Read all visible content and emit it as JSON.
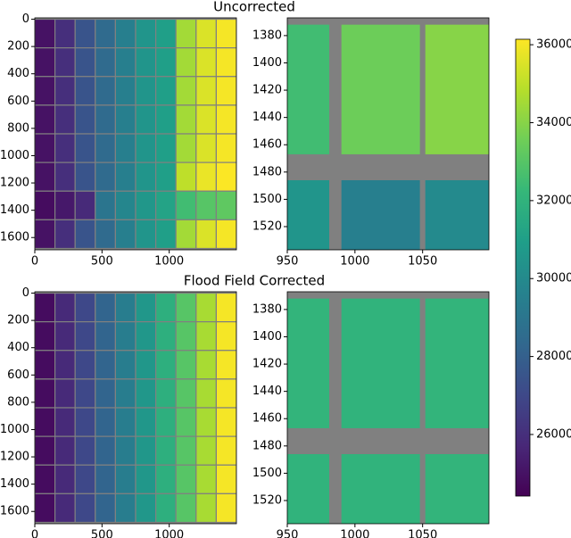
{
  "chart_data": [
    {
      "type": "heatmap",
      "title": "Uncorrected",
      "xedges": [
        0,
        150,
        300,
        450,
        600,
        750,
        900,
        1050,
        1200,
        1350,
        1500
      ],
      "yedges": [
        0,
        210,
        420,
        630,
        840,
        1050,
        1260,
        1470,
        1680
      ],
      "z": [
        [
          25000,
          26000,
          27500,
          28500,
          29500,
          30500,
          31000,
          34500,
          35500,
          36000
        ],
        [
          25000,
          26000,
          27500,
          28500,
          29500,
          30500,
          31000,
          34500,
          35500,
          36000
        ],
        [
          25000,
          26000,
          27500,
          28500,
          29500,
          30500,
          31000,
          34500,
          35500,
          36000
        ],
        [
          25000,
          26000,
          27500,
          28500,
          29500,
          30500,
          31000,
          34500,
          35500,
          36000
        ],
        [
          25000,
          26000,
          27500,
          28500,
          29500,
          30500,
          31000,
          34500,
          35500,
          36000
        ],
        [
          25000,
          26000,
          27500,
          28500,
          29500,
          30500,
          31000,
          35000,
          35800,
          36100
        ],
        [
          24800,
          25200,
          25800,
          29000,
          29800,
          30600,
          31200,
          32500,
          33000,
          33200
        ],
        [
          25000,
          26000,
          27500,
          28500,
          29500,
          30500,
          31000,
          34500,
          35500,
          36000
        ]
      ],
      "cell_edges": "#808080",
      "xlim": [
        0,
        1500
      ],
      "ylim": [
        1690,
        -10
      ],
      "xticks": [
        0,
        500,
        1000
      ],
      "yticks": [
        0,
        200,
        400,
        600,
        800,
        1000,
        1200,
        1400,
        1600
      ]
    },
    {
      "type": "heatmap",
      "xedges": [
        950,
        981,
        990,
        1048,
        1052,
        1100
      ],
      "yedges": [
        1367,
        1372,
        1467,
        1486,
        1537
      ],
      "z": [
        [
          null,
          null,
          null,
          null,
          null
        ],
        [
          32500,
          null,
          33500,
          null,
          34000
        ],
        [
          null,
          null,
          null,
          null,
          null
        ],
        [
          30500,
          null,
          29500,
          null,
          30000
        ]
      ],
      "xlim": [
        950,
        1099
      ],
      "ylim": [
        1537,
        1367
      ],
      "xticks": [
        950,
        1000,
        1050
      ],
      "yticks": [
        1380,
        1400,
        1420,
        1440,
        1460,
        1480,
        1500,
        1520
      ]
    },
    {
      "type": "heatmap",
      "title": "Flood Field Corrected",
      "xedges": [
        0,
        150,
        300,
        450,
        600,
        750,
        900,
        1050,
        1200,
        1350,
        1500
      ],
      "yedges": [
        0,
        210,
        420,
        630,
        840,
        1050,
        1260,
        1470,
        1680
      ],
      "z": [
        [
          24800,
          25800,
          27000,
          28200,
          29400,
          30600,
          31800,
          33000,
          34600,
          36000
        ],
        [
          24800,
          25800,
          27000,
          28200,
          29400,
          30600,
          31800,
          33000,
          34600,
          36000
        ],
        [
          24800,
          25800,
          27000,
          28200,
          29400,
          30600,
          31800,
          33000,
          34600,
          36000
        ],
        [
          24800,
          25800,
          27000,
          28200,
          29400,
          30600,
          31800,
          33000,
          34600,
          36000
        ],
        [
          24800,
          25800,
          27000,
          28200,
          29400,
          30600,
          31800,
          33000,
          34600,
          36000
        ],
        [
          24800,
          25800,
          27000,
          28200,
          29400,
          30600,
          31800,
          33000,
          34600,
          36000
        ],
        [
          24800,
          25800,
          27000,
          28200,
          29400,
          30600,
          31800,
          33000,
          34600,
          36000
        ],
        [
          24800,
          25800,
          27000,
          28200,
          29400,
          30600,
          31800,
          33000,
          34600,
          36000
        ]
      ],
      "cell_edges": "#808080",
      "xlim": [
        0,
        1500
      ],
      "ylim": [
        1690,
        -10
      ],
      "xticks": [
        0,
        500,
        1000
      ],
      "yticks": [
        0,
        200,
        400,
        600,
        800,
        1000,
        1200,
        1400,
        1600
      ]
    },
    {
      "type": "heatmap",
      "xedges": [
        950,
        981,
        990,
        1048,
        1052,
        1100
      ],
      "yedges": [
        1367,
        1372,
        1467,
        1486,
        1537
      ],
      "z": [
        [
          null,
          null,
          null,
          null,
          null
        ],
        [
          32100,
          null,
          32000,
          null,
          32100
        ],
        [
          null,
          null,
          null,
          null,
          null
        ],
        [
          32000,
          null,
          32000,
          null,
          32100
        ]
      ],
      "xlim": [
        950,
        1099
      ],
      "ylim": [
        1537,
        1367
      ],
      "xticks": [
        950,
        1000,
        1050
      ],
      "yticks": [
        1380,
        1400,
        1420,
        1440,
        1460,
        1480,
        1500,
        1520
      ]
    },
    {
      "type": "colorbar",
      "clim": [
        24420,
        36140
      ],
      "ticks": [
        26000,
        28000,
        30000,
        32000,
        34000,
        36000
      ],
      "colors": [
        "#440154",
        "#482878",
        "#3e4989",
        "#31688e",
        "#26828e",
        "#1f9e89",
        "#35b779",
        "#6ece58",
        "#b5de2b",
        "#fde725"
      ],
      "nan_color": "#808080"
    }
  ]
}
